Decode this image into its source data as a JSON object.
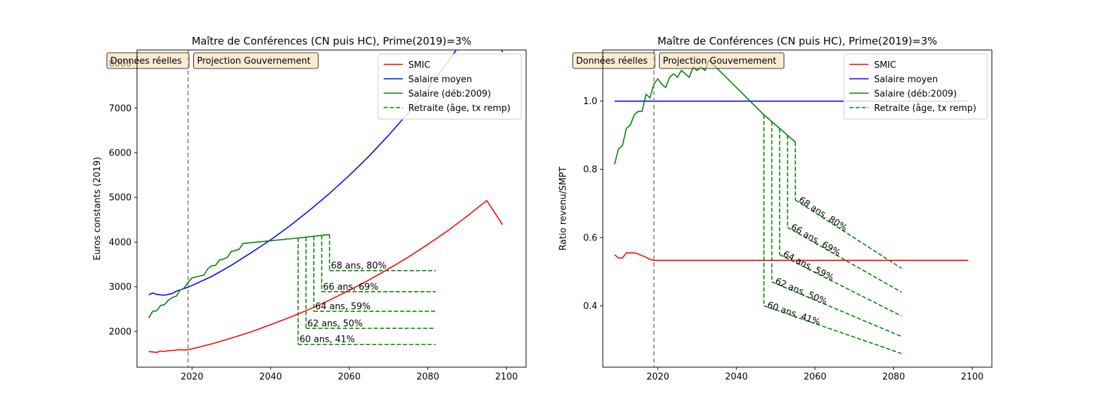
{
  "colors": {
    "smic": "#ff0000",
    "mean": "#0000ff",
    "salary": "#008000",
    "vline": "#808080",
    "box_fill": "#f5deb3"
  },
  "chart_data": [
    {
      "type": "line",
      "title": "Maître de Conférences (CN puis HC), Prime(2019)=3%",
      "xlabel": "",
      "ylabel": "Euros constants (2019)",
      "xlim": [
        2006,
        2105
      ],
      "ylim": [
        1200,
        8300
      ],
      "xticks": [
        2020,
        2040,
        2060,
        2080,
        2100
      ],
      "yticks": [
        2000,
        3000,
        4000,
        5000,
        6000,
        7000,
        8000
      ],
      "grid": false,
      "legend_position": "top-right",
      "reference_line_x": 2019,
      "boxes": [
        "Données réelles",
        "Projection Gouvernement"
      ],
      "legend": [
        {
          "label": "SMIC",
          "color": "#ff0000",
          "style": "solid"
        },
        {
          "label": "Salaire moyen",
          "color": "#0000ff",
          "style": "solid"
        },
        {
          "label": "Salaire (déb:2009)",
          "color": "#008000",
          "style": "solid"
        },
        {
          "label": "Retraite (âge, tx remp)",
          "color": "#008000",
          "style": "dashed"
        }
      ],
      "series": [
        {
          "name": "SMIC",
          "color": "#ff0000",
          "x": [
            2009,
            2010,
            2011,
            2012,
            2013,
            2014,
            2015,
            2016,
            2017,
            2018,
            2019,
            2025,
            2030,
            2035,
            2040,
            2045,
            2050,
            2055,
            2060,
            2065,
            2070,
            2075,
            2080,
            2085,
            2090,
            2095,
            2099
          ],
          "y": [
            1550,
            1540,
            1530,
            1560,
            1555,
            1570,
            1575,
            1585,
            1590,
            1585,
            1590,
            1720,
            1850,
            1990,
            2150,
            2320,
            2500,
            2700,
            2920,
            3150,
            3400,
            3660,
            3950,
            4250,
            4580,
            4930,
            4390
          ]
        },
        {
          "name": "Salaire moyen",
          "color": "#0000ff",
          "x": [
            2009,
            2010,
            2011,
            2012,
            2013,
            2014,
            2015,
            2016,
            2017,
            2018,
            2019,
            2025,
            2030,
            2035,
            2040,
            2045,
            2050,
            2055,
            2060,
            2065,
            2070,
            2075,
            2080,
            2085,
            2090,
            2095,
            2099
          ],
          "y": [
            2820,
            2860,
            2830,
            2820,
            2810,
            2830,
            2850,
            2900,
            2930,
            2960,
            2990,
            3230,
            3480,
            3760,
            4050,
            4370,
            4720,
            5090,
            5490,
            5920,
            6390,
            6890,
            7440,
            8020,
            8650,
            9330,
            8250
          ]
        },
        {
          "name": "Salaire (déb:2009)",
          "color": "#008000",
          "x": [
            2009,
            2010,
            2011,
            2012,
            2013,
            2014,
            2015,
            2016,
            2017,
            2018,
            2019,
            2020,
            2022,
            2023,
            2024,
            2025,
            2026,
            2027,
            2028,
            2029,
            2030,
            2031,
            2032,
            2033,
            2047,
            2049,
            2051,
            2053,
            2055
          ],
          "y": [
            2300,
            2450,
            2460,
            2580,
            2600,
            2700,
            2760,
            2790,
            2930,
            2970,
            3100,
            3200,
            3240,
            3260,
            3400,
            3470,
            3480,
            3600,
            3620,
            3660,
            3790,
            3810,
            3840,
            3970,
            4090,
            4110,
            4130,
            4150,
            4170
          ]
        }
      ],
      "retirements": [
        {
          "label": "60 ans, 41%",
          "age": 60,
          "rate": 41,
          "year": 2047,
          "salary": 4090,
          "pension": 1710,
          "end_year": 2082
        },
        {
          "label": "62 ans, 50%",
          "age": 62,
          "rate": 50,
          "year": 2049,
          "salary": 4110,
          "pension": 2070,
          "end_year": 2082
        },
        {
          "label": "64 ans, 59%",
          "age": 64,
          "rate": 59,
          "year": 2051,
          "salary": 4130,
          "pension": 2450,
          "end_year": 2082
        },
        {
          "label": "66 ans, 69%",
          "age": 66,
          "rate": 69,
          "year": 2053,
          "salary": 4150,
          "pension": 2890,
          "end_year": 2082
        },
        {
          "label": "68 ans, 80%",
          "age": 68,
          "rate": 80,
          "year": 2055,
          "salary": 4170,
          "pension": 3360,
          "end_year": 2082
        }
      ]
    },
    {
      "type": "line",
      "title": "Maître de Conférences (CN puis HC), Prime(2019)=3%",
      "xlabel": "",
      "ylabel": "Ratio revenu/SMPT",
      "xlim": [
        2006,
        2105
      ],
      "ylim": [
        0.22,
        1.15
      ],
      "xticks": [
        2020,
        2040,
        2060,
        2080,
        2100
      ],
      "yticks": [
        0.4,
        0.6,
        0.8,
        1.0
      ],
      "grid": false,
      "legend_position": "top-right",
      "reference_line_x": 2019,
      "boxes": [
        "Données réelles",
        "Projection Gouvernement"
      ],
      "legend": [
        {
          "label": "SMIC",
          "color": "#ff0000",
          "style": "solid"
        },
        {
          "label": "Salaire moyen",
          "color": "#0000ff",
          "style": "solid"
        },
        {
          "label": "Salaire (déb:2009)",
          "color": "#008000",
          "style": "solid"
        },
        {
          "label": "Retraite (âge, tx remp)",
          "color": "#008000",
          "style": "dashed"
        }
      ],
      "series": [
        {
          "name": "SMIC",
          "color": "#ff0000",
          "x": [
            2009,
            2010,
            2011,
            2012,
            2013,
            2014,
            2015,
            2016,
            2017,
            2018,
            2019,
            2099
          ],
          "y": [
            0.55,
            0.54,
            0.54,
            0.555,
            0.555,
            0.555,
            0.552,
            0.547,
            0.542,
            0.536,
            0.533,
            0.533
          ]
        },
        {
          "name": "Salaire moyen",
          "color": "#0000ff",
          "x": [
            2009,
            2099
          ],
          "y": [
            1.0,
            1.0
          ]
        },
        {
          "name": "Salaire (déb:2009)",
          "color": "#008000",
          "x": [
            2009,
            2010,
            2011,
            2012,
            2013,
            2014,
            2015,
            2016,
            2017,
            2018,
            2019,
            2020,
            2021,
            2022,
            2023,
            2024,
            2025,
            2026,
            2027,
            2028,
            2029,
            2030,
            2031,
            2032,
            2033,
            2047,
            2049,
            2051,
            2053,
            2055
          ],
          "y": [
            0.815,
            0.86,
            0.87,
            0.92,
            0.93,
            0.96,
            0.97,
            0.97,
            1.02,
            1.01,
            1.05,
            1.065,
            1.05,
            1.04,
            1.07,
            1.08,
            1.07,
            1.09,
            1.08,
            1.07,
            1.1,
            1.09,
            1.1,
            1.09,
            1.12,
            0.96,
            0.94,
            0.92,
            0.9,
            0.88
          ]
        }
      ],
      "retirements": [
        {
          "label": "60 ans, 41%",
          "year": 2047,
          "salary": 0.96,
          "start": 0.4,
          "end_year": 2082,
          "end": 0.26
        },
        {
          "label": "62 ans, 50%",
          "year": 2049,
          "salary": 0.94,
          "start": 0.47,
          "end_year": 2082,
          "end": 0.31
        },
        {
          "label": "64 ans, 59%",
          "year": 2051,
          "salary": 0.92,
          "start": 0.55,
          "end_year": 2082,
          "end": 0.37
        },
        {
          "label": "66 ans, 69%",
          "year": 2053,
          "salary": 0.9,
          "start": 0.63,
          "end_year": 2082,
          "end": 0.44
        },
        {
          "label": "68 ans, 80%",
          "year": 2055,
          "salary": 0.88,
          "start": 0.71,
          "end_year": 2082,
          "end": 0.51
        }
      ]
    }
  ]
}
